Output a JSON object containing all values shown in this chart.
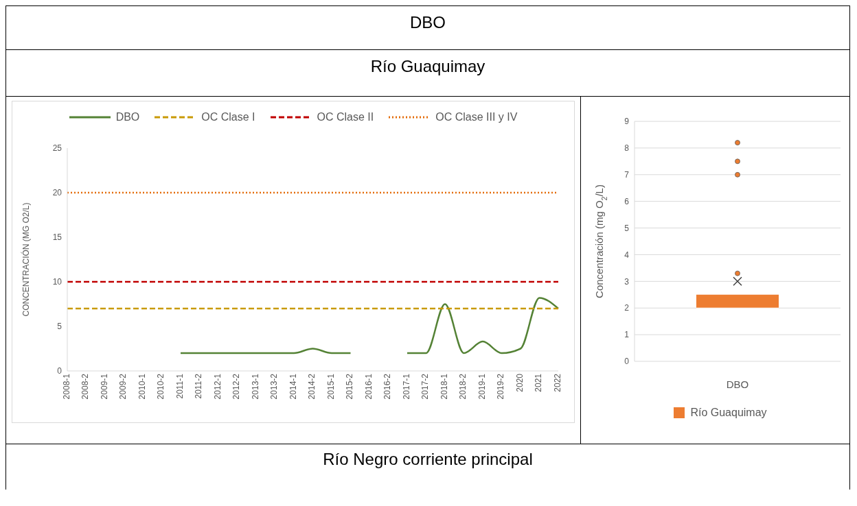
{
  "chart_data": [
    {
      "type": "line",
      "title": "DBO",
      "subtitle": "Río Guaquimay",
      "annotations": [
        "Río Negro corriente principal"
      ],
      "ylabel": "CONCENTRACIÓN (MG O2/L)",
      "categories": [
        "2008-1",
        "2008-2",
        "2009-1",
        "2009-2",
        "2010-1",
        "2010-2",
        "2011-1",
        "2011-2",
        "2012-1",
        "2012-2",
        "2013-1",
        "2013-2",
        "2014-1",
        "2014-2",
        "2015-1",
        "2015-2",
        "2016-1",
        "2016-2",
        "2017-1",
        "2017-2",
        "2018-1",
        "2018-2",
        "2019-1",
        "2019-2",
        "2020",
        "2021",
        "2022"
      ],
      "series": [
        {
          "name": "DBO",
          "color": "#548235",
          "line_style": "solid",
          "values": [
            null,
            null,
            null,
            null,
            null,
            null,
            2,
            2,
            2,
            2,
            2,
            2,
            2,
            2.5,
            2,
            2,
            null,
            null,
            2,
            2,
            7.5,
            2,
            3.3,
            2,
            2.5,
            8.2,
            7
          ]
        },
        {
          "name": "OC Clase I",
          "color": "#c99a06",
          "line_style": "dashed",
          "values": [
            7,
            7,
            7,
            7,
            7,
            7,
            7,
            7,
            7,
            7,
            7,
            7,
            7,
            7,
            7,
            7,
            7,
            7,
            7,
            7,
            7,
            7,
            7,
            7,
            7,
            7,
            7
          ]
        },
        {
          "name": "OC Clase II",
          "color": "#c00000",
          "line_style": "dashed",
          "values": [
            10,
            10,
            10,
            10,
            10,
            10,
            10,
            10,
            10,
            10,
            10,
            10,
            10,
            10,
            10,
            10,
            10,
            10,
            10,
            10,
            10,
            10,
            10,
            10,
            10,
            10,
            10
          ]
        },
        {
          "name": "OC Clase III y IV",
          "color": "#e46c0a",
          "line_style": "dotted",
          "values": [
            20,
            20,
            20,
            20,
            20,
            20,
            20,
            20,
            20,
            20,
            20,
            20,
            20,
            20,
            20,
            20,
            20,
            20,
            20,
            20,
            20,
            20,
            20,
            20,
            20,
            20,
            20
          ]
        }
      ],
      "ylim": [
        0,
        25
      ],
      "yticks": [
        0,
        5,
        10,
        15,
        20,
        25
      ],
      "legend": "top",
      "marker": "none"
    },
    {
      "type": "box",
      "ylabel": "Concentración (mg O$_{2}$/L)",
      "categories": [
        "DBO"
      ],
      "series": [
        {
          "name": "Río Guaquimay",
          "color": "#ed7d31",
          "boxes": [
            {
              "low": 2,
              "q1": 2,
              "median": 2,
              "q3": 2.5,
              "high": 2.5,
              "mean": 3,
              "outliers": [
                3.3,
                7,
                7.5,
                8.2
              ]
            }
          ]
        }
      ],
      "ylim": [
        0,
        9
      ],
      "yticks": [
        0,
        1,
        2,
        3,
        4,
        5,
        6,
        7,
        8,
        9
      ],
      "grid": "y",
      "legend": "bottom"
    }
  ]
}
